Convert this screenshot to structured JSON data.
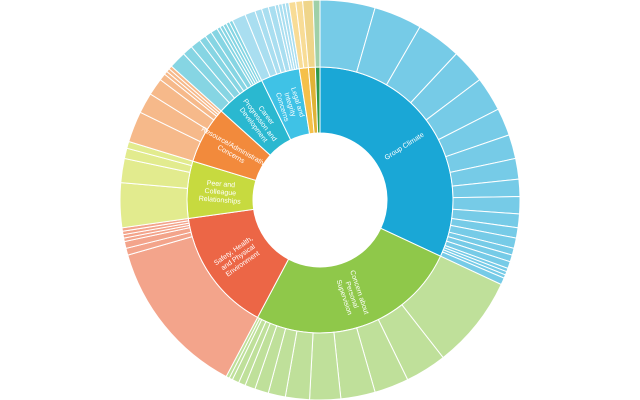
{
  "chart_data": {
    "type": "sunburst",
    "title": "",
    "center_hole": true,
    "units": "degrees",
    "categories": [
      {
        "label": "Group Climate",
        "start": 0,
        "end": 115,
        "color": "#1aa7d6",
        "outer_color": "#76cbe7",
        "children": [
          16,
          14,
          13,
          10,
          10,
          8,
          7,
          6,
          5,
          5,
          4,
          3,
          3,
          2,
          2,
          2,
          1,
          1,
          1,
          2
        ]
      },
      {
        "label": "Concern about Personal Supervision",
        "start": 115,
        "end": 208,
        "color": "#8fc84a",
        "outer_color": "#bfe09a",
        "children": [
          27,
          12,
          10,
          10,
          9,
          7,
          5,
          4,
          3,
          2,
          2,
          1,
          1
        ]
      },
      {
        "label": "Safety, Health, and Physical Environment",
        "start": 208,
        "end": 262,
        "color": "#ec6646",
        "outer_color": "#f3a48b",
        "children": [
          46,
          2,
          2,
          1,
          1,
          1,
          1
        ]
      },
      {
        "label": "Peer and Colleague Relationships",
        "start": 262,
        "end": 287,
        "color": "#c7da3f",
        "outer_color": "#e2eb8e",
        "children": [
          13,
          7,
          3,
          2
        ]
      },
      {
        "label": "Resource/Administrative Concerns",
        "start": 287,
        "end": 312,
        "color": "#f28a3c",
        "outer_color": "#f6b98a",
        "children": [
          9,
          6,
          5,
          2,
          1,
          1,
          1
        ]
      },
      {
        "label": "Career Progression and Development",
        "start": 312,
        "end": 334,
        "color": "#2ab8d0",
        "outer_color": "#86d5e3",
        "children": [
          5,
          3,
          3,
          2,
          2,
          2,
          1,
          1,
          1,
          1,
          1
        ]
      },
      {
        "label": "Legal and Integrity Concerns",
        "start": 334,
        "end": 351,
        "color": "#3fc2e6",
        "outer_color": "#a9def0",
        "children": [
          4,
          3,
          2,
          2,
          2,
          1,
          1,
          1,
          1
        ]
      },
      {
        "label": "",
        "start": 351,
        "end": 355,
        "color": "#f5c04a",
        "outer_color": "#f8dc96",
        "children": [
          2,
          2
        ]
      },
      {
        "label": "",
        "start": 355,
        "end": 358,
        "color": "#e0b236",
        "outer_color": "#efd58a",
        "children": [
          3
        ]
      },
      {
        "label": "",
        "start": 358,
        "end": 360,
        "color": "#2f9a4a",
        "outer_color": "#9fd0a8",
        "children": [
          2
        ]
      }
    ]
  }
}
